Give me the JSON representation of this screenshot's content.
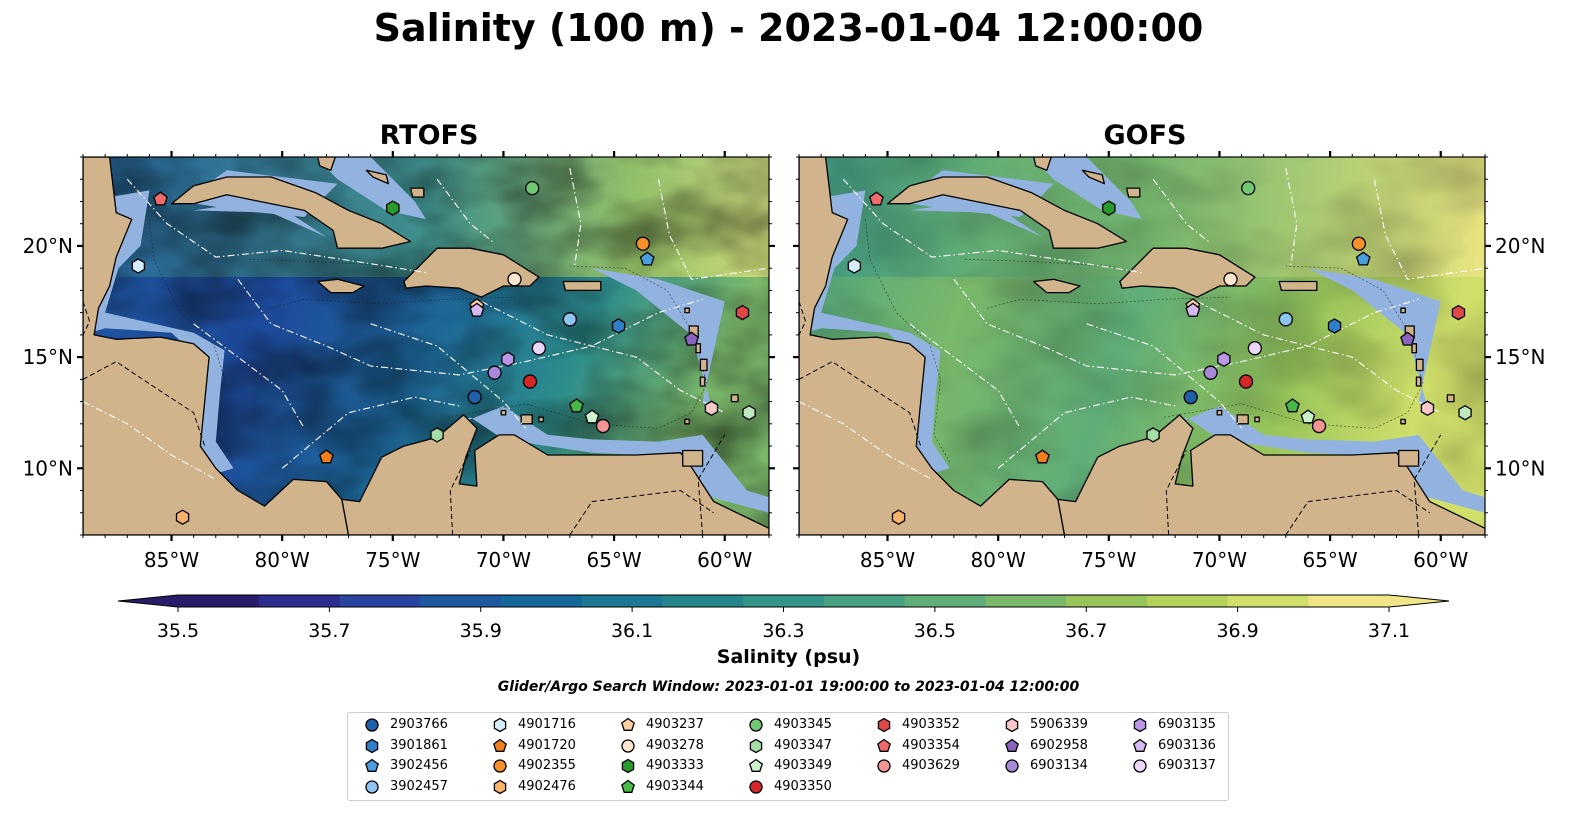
{
  "title": "Salinity (100 m) - 2023-01-04 12:00:00",
  "panels": [
    {
      "title": "RTOFS",
      "key": "rtofs"
    },
    {
      "title": "GOFS",
      "key": "gofs"
    }
  ],
  "map": {
    "lon_range": [
      -89,
      -58
    ],
    "lat_range": [
      7,
      24
    ],
    "lon_ticks": [
      {
        "value": -85,
        "label": "85°W"
      },
      {
        "value": -80,
        "label": "80°W"
      },
      {
        "value": -75,
        "label": "75°W"
      },
      {
        "value": -70,
        "label": "70°W"
      },
      {
        "value": -65,
        "label": "65°W"
      },
      {
        "value": -60,
        "label": "60°W"
      }
    ],
    "lat_ticks": [
      {
        "value": 20,
        "label": "20°N"
      },
      {
        "value": 15,
        "label": "15°N"
      },
      {
        "value": 10,
        "label": "10°N"
      }
    ],
    "land_color": "#d2b48c",
    "shallow_water_color": "#92b3e0"
  },
  "colorbar": {
    "label": "Salinity (psu)",
    "min": 35.5,
    "max": 37.1,
    "step": 0.1,
    "ticks": [
      "35.5",
      "35.7",
      "35.9",
      "36.1",
      "36.3",
      "36.5",
      "36.7",
      "36.9",
      "37.1"
    ],
    "colors": [
      "#2b1b6b",
      "#2d2c8f",
      "#2a44a1",
      "#1e58a0",
      "#15689a",
      "#1c7894",
      "#26868e",
      "#33948a",
      "#48a183",
      "#5fad78",
      "#7ab86a",
      "#97c55b",
      "#b5d15c",
      "#d0de6a",
      "#f0e688"
    ],
    "extend": "both"
  },
  "search_window": "Glider/Argo Search Window: 2023-01-01 19:00:00 to 2023-01-04 12:00:00",
  "floats": [
    {
      "id": "2903766",
      "shape": "circle",
      "color": "#1f5fa8",
      "lon": -71.3,
      "lat": 13.2
    },
    {
      "id": "3901861",
      "shape": "hexagon",
      "color": "#2f7fc8",
      "lon": -64.8,
      "lat": 16.4
    },
    {
      "id": "3902456",
      "shape": "pentagon",
      "color": "#4a9ee0",
      "lon": -63.5,
      "lat": 19.4
    },
    {
      "id": "3902457",
      "shape": "circle",
      "color": "#8ec4f0",
      "lon": -67.0,
      "lat": 16.7
    },
    {
      "id": "4901716",
      "shape": "hexagon",
      "color": "#d4ecfb",
      "lon": -86.5,
      "lat": 19.1
    },
    {
      "id": "4901720",
      "shape": "pentagon",
      "color": "#f07e1c",
      "lon": -78.0,
      "lat": 10.5
    },
    {
      "id": "4902355",
      "shape": "circle",
      "color": "#f5902a",
      "lon": -63.7,
      "lat": 20.1
    },
    {
      "id": "4902476",
      "shape": "hexagon",
      "color": "#f9b26a",
      "lon": -84.5,
      "lat": 7.8
    },
    {
      "id": "4903237",
      "shape": "pentagon",
      "color": "#fbd09e",
      "lon": -71.2,
      "lat": 17.3
    },
    {
      "id": "4903278",
      "shape": "circle",
      "color": "#fde6cf",
      "lon": -69.5,
      "lat": 18.5
    },
    {
      "id": "4903333",
      "shape": "hexagon",
      "color": "#2a9a2a",
      "lon": -75.0,
      "lat": 21.7
    },
    {
      "id": "4903344",
      "shape": "pentagon",
      "color": "#48b848",
      "lon": -66.7,
      "lat": 12.8
    },
    {
      "id": "4903345",
      "shape": "circle",
      "color": "#72c872",
      "lon": -68.7,
      "lat": 22.6
    },
    {
      "id": "4903347",
      "shape": "hexagon",
      "color": "#a4dea4",
      "lon": -73.0,
      "lat": 11.5
    },
    {
      "id": "4903349",
      "shape": "pentagon",
      "color": "#cef2ce",
      "lon": -66.0,
      "lat": 12.3
    },
    {
      "id": "4903350",
      "shape": "circle",
      "color": "#d62728",
      "lon": -68.8,
      "lat": 13.9
    },
    {
      "id": "4903352",
      "shape": "hexagon",
      "color": "#e04848",
      "lon": -59.2,
      "lat": 17.0
    },
    {
      "id": "4903354",
      "shape": "pentagon",
      "color": "#f06a6a",
      "lon": -85.5,
      "lat": 22.1
    },
    {
      "id": "4903629",
      "shape": "circle",
      "color": "#f49494",
      "lon": -65.5,
      "lat": 11.9
    },
    {
      "id": "5906339",
      "shape": "hexagon",
      "color": "#f8c8c8",
      "lon": -60.6,
      "lat": 12.7
    },
    {
      "id": "6902958",
      "shape": "pentagon",
      "color": "#8a62bf",
      "lon": -61.5,
      "lat": 15.8
    },
    {
      "id": "6903134",
      "shape": "circle",
      "color": "#a888d8",
      "lon": -70.4,
      "lat": 14.3
    },
    {
      "id": "6903135",
      "shape": "hexagon",
      "color": "#bb96e6",
      "lon": -69.8,
      "lat": 14.9
    },
    {
      "id": "6903136",
      "shape": "pentagon",
      "color": "#d6b8f2",
      "lon": -71.2,
      "lat": 17.1
    },
    {
      "id": "6903137",
      "shape": "circle",
      "color": "#ecd6fa",
      "lon": -68.4,
      "lat": 15.4
    },
    {
      "id": "extra-hex",
      "shape": "hexagon",
      "color": "#c0e8c0",
      "lon": -58.9,
      "lat": 12.5
    }
  ],
  "legend_columns": [
    [
      "2903766",
      "3901861",
      "3902456",
      "3902457"
    ],
    [
      "4901716",
      "4901720",
      "4902355",
      "4902476"
    ],
    [
      "4903237",
      "4903278",
      "4903333",
      "4903344"
    ],
    [
      "4903345",
      "4903347",
      "4903349",
      "4903350"
    ],
    [
      "4903352",
      "4903354",
      "4903629"
    ],
    [
      "5906339",
      "6902958",
      "6903134"
    ],
    [
      "6903135",
      "6903136",
      "6903137"
    ]
  ]
}
